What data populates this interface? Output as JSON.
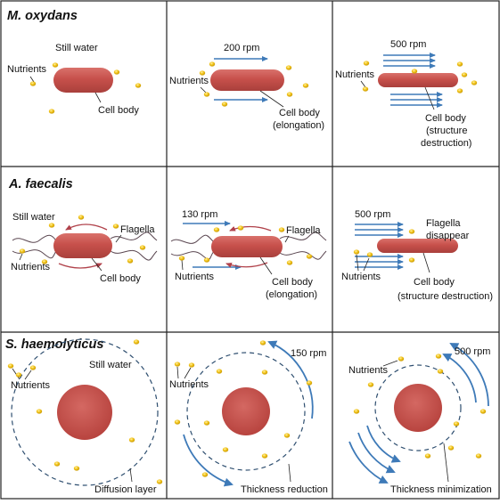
{
  "colors": {
    "cell_fill": "#c7504b",
    "cell_edge": "#a83a36",
    "nutrient_fill": "#f0c419",
    "arrow_blue": "#3e7ab8",
    "flagella_red": "#b0414a",
    "flagella_dark": "#5a4650",
    "dashed_circle": "#2f4f70",
    "grid_line": "#222222"
  },
  "rows": [
    {
      "title": "M. oxydans",
      "panels": [
        {
          "labels": [
            "Still water",
            "Nutrients",
            "Cell body"
          ]
        },
        {
          "speed": "200 rpm",
          "labels": [
            "Nutrients",
            "Cell body",
            "(elongation)"
          ]
        },
        {
          "speed": "500 rpm",
          "labels": [
            "Nutrients",
            "Cell body",
            "(structure",
            "destruction)"
          ]
        }
      ]
    },
    {
      "title": "A. faecalis",
      "panels": [
        {
          "labels": [
            "Still water",
            "Flagella",
            "Nutrients",
            "Cell body"
          ]
        },
        {
          "speed": "130 rpm",
          "labels": [
            "Flagella",
            "Nutrients",
            "Cell body",
            "(elongation)"
          ]
        },
        {
          "speed": "500 rpm",
          "labels": [
            "Flagella",
            "disappear",
            "Nutrients",
            "Cell body",
            "(structure destruction)"
          ]
        }
      ]
    },
    {
      "title": "S. haemolyticus",
      "panels": [
        {
          "labels": [
            "Still water",
            "Nutrients",
            "Diffusion layer"
          ]
        },
        {
          "speed": "150 rpm",
          "labels": [
            "Nutrients",
            "Thickness reduction"
          ]
        },
        {
          "speed": "500 rpm",
          "labels": [
            "Nutrients",
            "Thickness minimization"
          ]
        }
      ]
    }
  ]
}
